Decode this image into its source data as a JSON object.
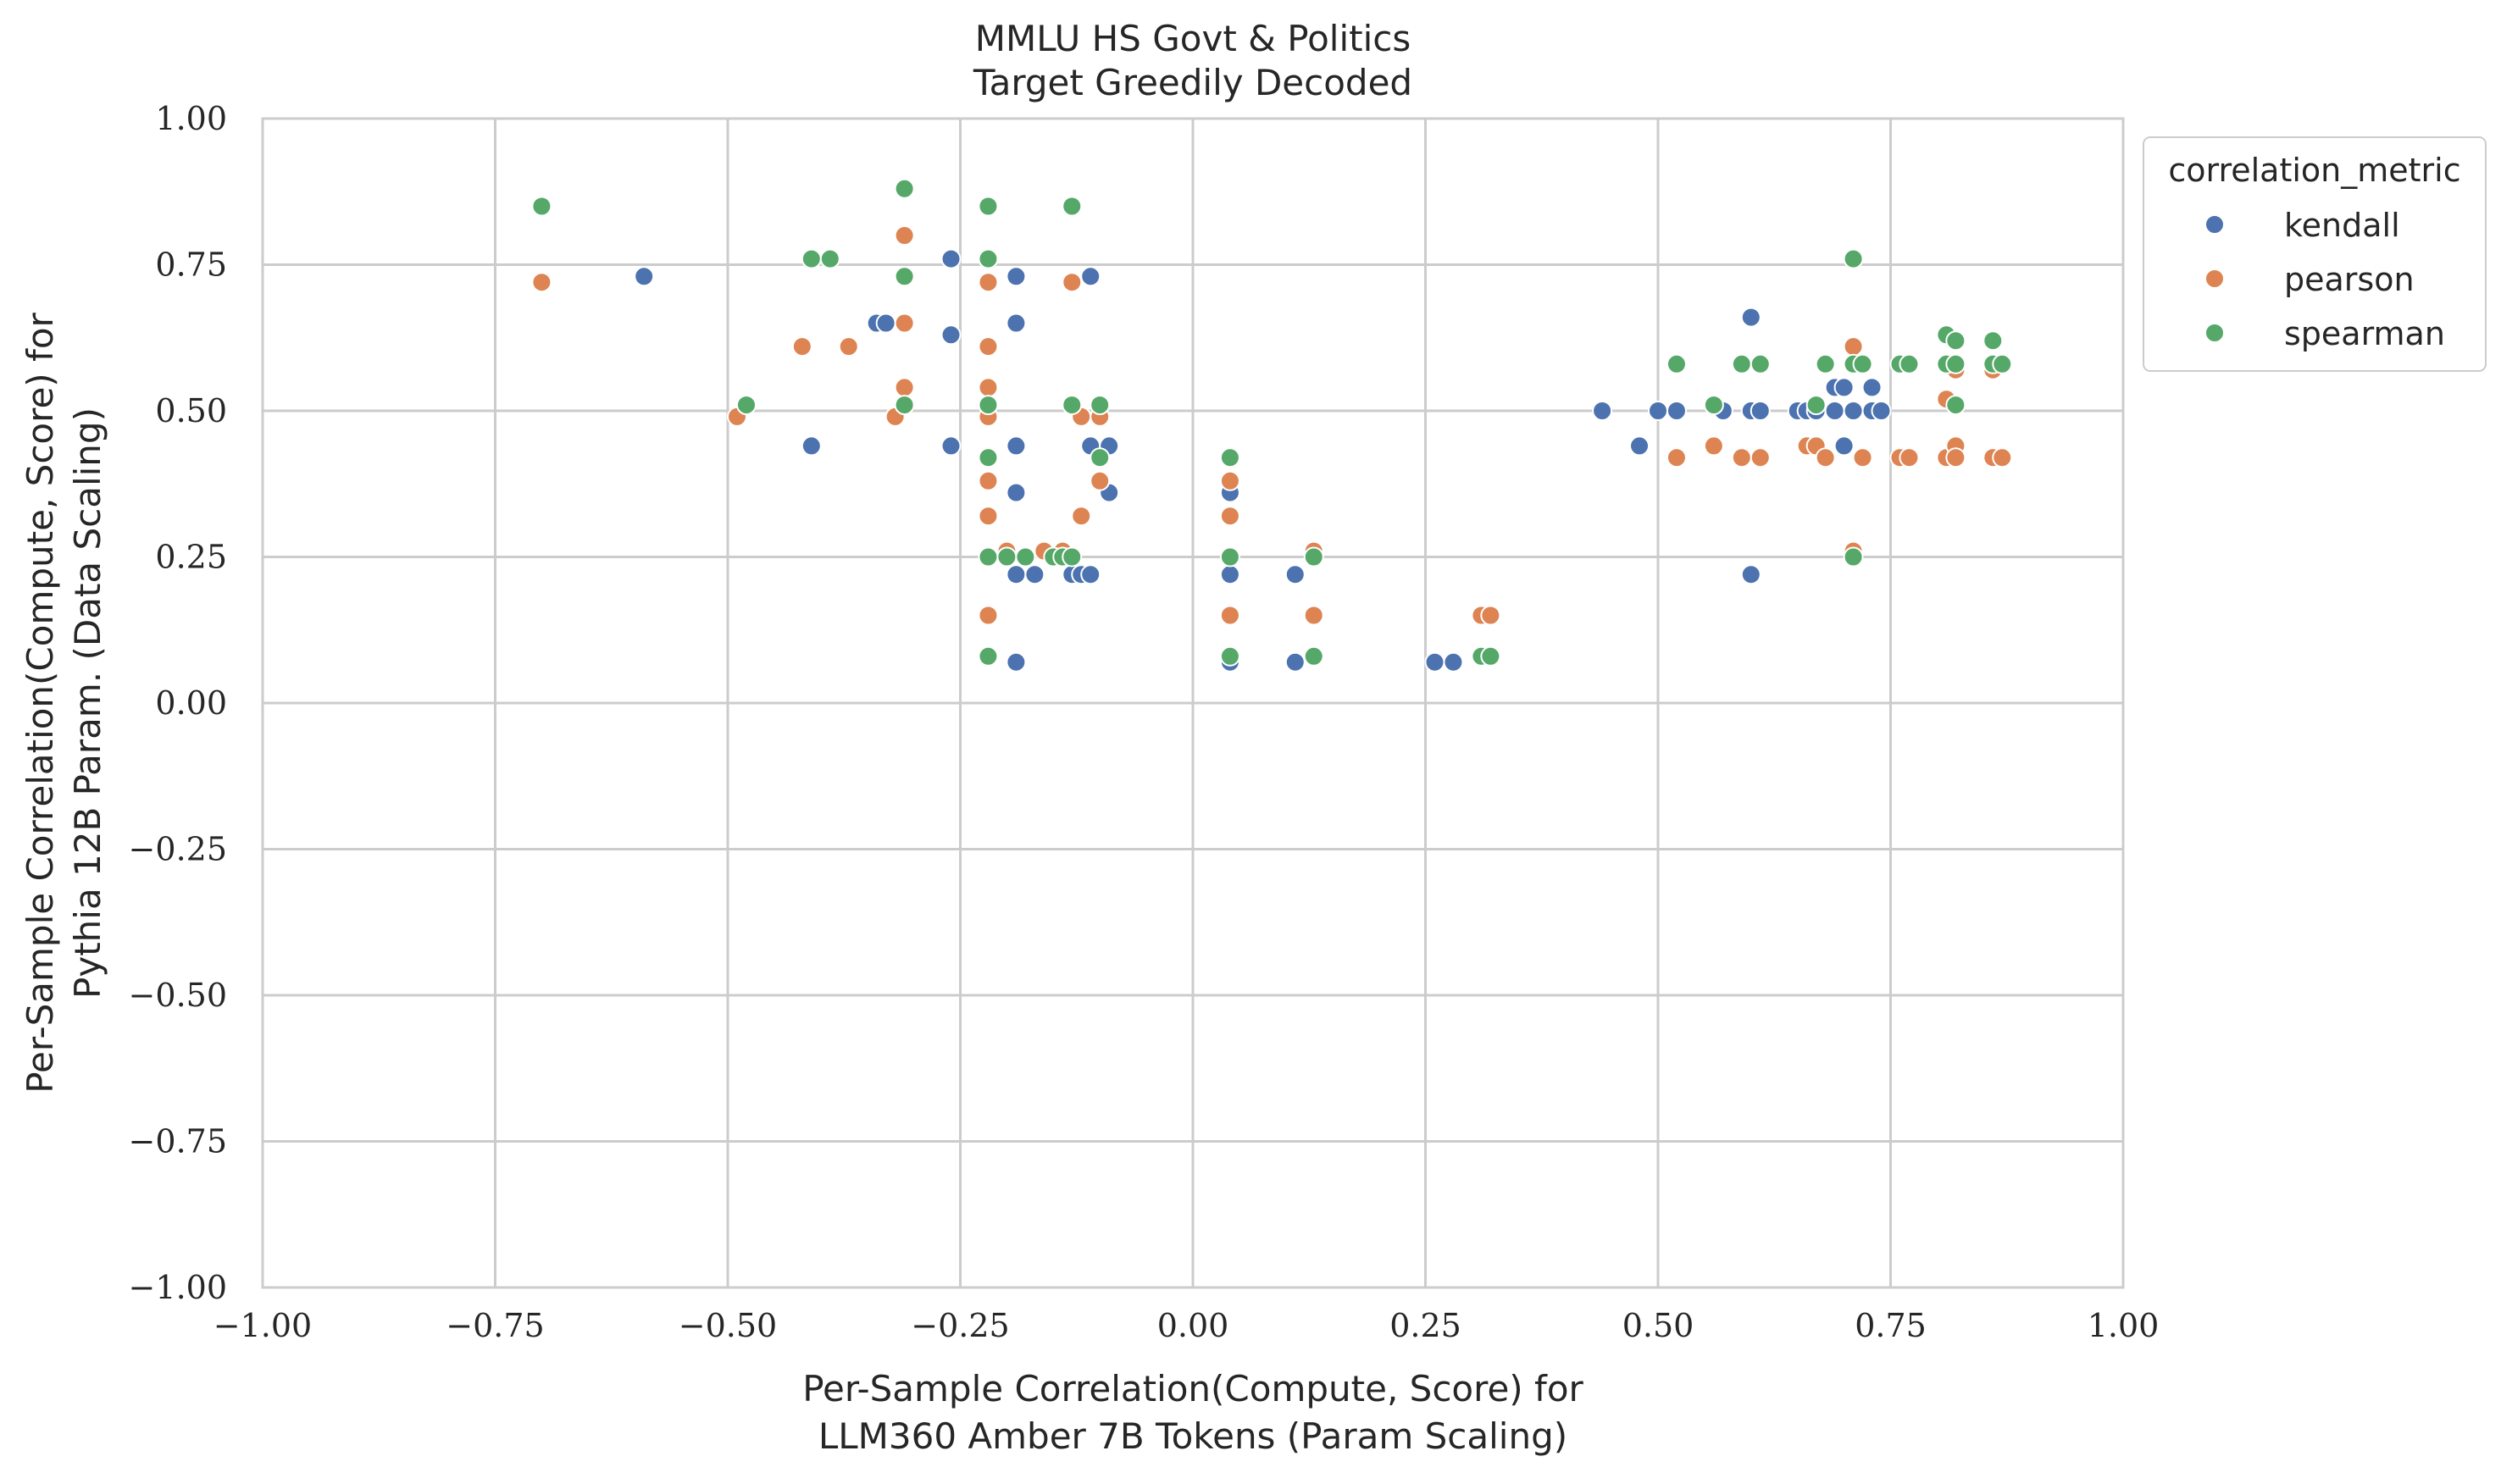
{
  "chart_data": {
    "type": "scatter",
    "title": "MMLU HS Govt & Politics",
    "subtitle": "Target Greedily Decoded",
    "xlabel_line1": "Per-Sample Correlation(Compute, Score) for",
    "xlabel_line2": "LLM360 Amber 7B Tokens (Param Scaling)",
    "ylabel_line1": "Per-Sample Correlation(Compute, Score) for",
    "ylabel_line2": "Pythia 12B Param. (Data Scaling)",
    "xlim": [
      -1.0,
      1.0
    ],
    "ylim": [
      -1.0,
      1.0
    ],
    "xticks": [
      -1.0,
      -0.75,
      -0.5,
      -0.25,
      0.0,
      0.25,
      0.5,
      0.75,
      1.0
    ],
    "yticks": [
      -1.0,
      -0.75,
      -0.5,
      -0.25,
      0.0,
      0.25,
      0.5,
      0.75,
      1.0
    ],
    "xtick_labels": [
      "−1.00",
      "−0.75",
      "−0.50",
      "−0.25",
      "0.00",
      "0.25",
      "0.50",
      "0.75",
      "1.00"
    ],
    "ytick_labels": [
      "−1.00",
      "−0.75",
      "−0.50",
      "−0.25",
      "0.00",
      "0.25",
      "0.50",
      "0.75",
      "1.00"
    ],
    "grid": true,
    "legend_title": "correlation_metric",
    "legend_position": "outside-top-right",
    "series": [
      {
        "name": "kendall",
        "color": "#4c72b0",
        "points": [
          [
            -0.59,
            0.73
          ],
          [
            -0.41,
            0.44
          ],
          [
            -0.34,
            0.65
          ],
          [
            -0.33,
            0.65
          ],
          [
            -0.26,
            0.76
          ],
          [
            -0.26,
            0.63
          ],
          [
            -0.26,
            0.44
          ],
          [
            -0.19,
            0.73
          ],
          [
            -0.19,
            0.65
          ],
          [
            -0.19,
            0.44
          ],
          [
            -0.19,
            0.36
          ],
          [
            -0.19,
            0.22
          ],
          [
            -0.19,
            0.07
          ],
          [
            -0.17,
            0.22
          ],
          [
            -0.13,
            0.22
          ],
          [
            -0.12,
            0.22
          ],
          [
            -0.11,
            0.22
          ],
          [
            -0.11,
            0.73
          ],
          [
            -0.11,
            0.44
          ],
          [
            -0.09,
            0.44
          ],
          [
            -0.09,
            0.36
          ],
          [
            0.04,
            0.36
          ],
          [
            0.04,
            0.22
          ],
          [
            0.04,
            0.07
          ],
          [
            0.11,
            0.22
          ],
          [
            0.11,
            0.07
          ],
          [
            0.26,
            0.07
          ],
          [
            0.28,
            0.07
          ],
          [
            0.44,
            0.5
          ],
          [
            0.48,
            0.44
          ],
          [
            0.5,
            0.5
          ],
          [
            0.52,
            0.5
          ],
          [
            0.56,
            0.44
          ],
          [
            0.57,
            0.5
          ],
          [
            0.6,
            0.66
          ],
          [
            0.6,
            0.5
          ],
          [
            0.6,
            0.22
          ],
          [
            0.61,
            0.5
          ],
          [
            0.65,
            0.5
          ],
          [
            0.66,
            0.5
          ],
          [
            0.67,
            0.5
          ],
          [
            0.69,
            0.54
          ],
          [
            0.69,
            0.5
          ],
          [
            0.7,
            0.54
          ],
          [
            0.7,
            0.44
          ],
          [
            0.71,
            0.5
          ],
          [
            0.73,
            0.54
          ],
          [
            0.73,
            0.5
          ],
          [
            0.74,
            0.5
          ]
        ]
      },
      {
        "name": "pearson",
        "color": "#dd8452",
        "points": [
          [
            -0.7,
            0.72
          ],
          [
            -0.49,
            0.49
          ],
          [
            -0.42,
            0.61
          ],
          [
            -0.37,
            0.61
          ],
          [
            -0.32,
            0.49
          ],
          [
            -0.31,
            0.8
          ],
          [
            -0.31,
            0.65
          ],
          [
            -0.31,
            0.54
          ],
          [
            -0.22,
            0.72
          ],
          [
            -0.22,
            0.61
          ],
          [
            -0.22,
            0.54
          ],
          [
            -0.22,
            0.49
          ],
          [
            -0.22,
            0.38
          ],
          [
            -0.22,
            0.32
          ],
          [
            -0.22,
            0.15
          ],
          [
            -0.2,
            0.26
          ],
          [
            -0.16,
            0.26
          ],
          [
            -0.14,
            0.26
          ],
          [
            -0.13,
            0.72
          ],
          [
            -0.12,
            0.49
          ],
          [
            -0.12,
            0.32
          ],
          [
            -0.1,
            0.49
          ],
          [
            -0.1,
            0.38
          ],
          [
            0.04,
            0.38
          ],
          [
            0.04,
            0.32
          ],
          [
            0.04,
            0.15
          ],
          [
            0.13,
            0.26
          ],
          [
            0.13,
            0.15
          ],
          [
            0.31,
            0.15
          ],
          [
            0.32,
            0.15
          ],
          [
            0.52,
            0.42
          ],
          [
            0.56,
            0.44
          ],
          [
            0.59,
            0.42
          ],
          [
            0.61,
            0.42
          ],
          [
            0.66,
            0.44
          ],
          [
            0.67,
            0.44
          ],
          [
            0.68,
            0.42
          ],
          [
            0.71,
            0.61
          ],
          [
            0.71,
            0.26
          ],
          [
            0.72,
            0.42
          ],
          [
            0.76,
            0.42
          ],
          [
            0.77,
            0.42
          ],
          [
            0.81,
            0.52
          ],
          [
            0.81,
            0.42
          ],
          [
            0.82,
            0.44
          ],
          [
            0.82,
            0.42
          ],
          [
            0.82,
            0.57
          ],
          [
            0.86,
            0.57
          ],
          [
            0.86,
            0.42
          ],
          [
            0.87,
            0.42
          ]
        ]
      },
      {
        "name": "spearman",
        "color": "#55a868",
        "points": [
          [
            -0.7,
            0.85
          ],
          [
            -0.48,
            0.51
          ],
          [
            -0.41,
            0.76
          ],
          [
            -0.39,
            0.76
          ],
          [
            -0.31,
            0.88
          ],
          [
            -0.31,
            0.73
          ],
          [
            -0.31,
            0.51
          ],
          [
            -0.22,
            0.85
          ],
          [
            -0.22,
            0.76
          ],
          [
            -0.22,
            0.51
          ],
          [
            -0.22,
            0.42
          ],
          [
            -0.22,
            0.25
          ],
          [
            -0.22,
            0.08
          ],
          [
            -0.2,
            0.25
          ],
          [
            -0.18,
            0.25
          ],
          [
            -0.15,
            0.25
          ],
          [
            -0.14,
            0.25
          ],
          [
            -0.13,
            0.85
          ],
          [
            -0.13,
            0.51
          ],
          [
            -0.13,
            0.25
          ],
          [
            -0.1,
            0.51
          ],
          [
            -0.1,
            0.42
          ],
          [
            0.04,
            0.42
          ],
          [
            0.04,
            0.25
          ],
          [
            0.04,
            0.08
          ],
          [
            0.13,
            0.25
          ],
          [
            0.13,
            0.08
          ],
          [
            0.31,
            0.08
          ],
          [
            0.32,
            0.08
          ],
          [
            0.52,
            0.58
          ],
          [
            0.56,
            0.51
          ],
          [
            0.59,
            0.58
          ],
          [
            0.61,
            0.58
          ],
          [
            0.67,
            0.51
          ],
          [
            0.68,
            0.58
          ],
          [
            0.71,
            0.76
          ],
          [
            0.71,
            0.58
          ],
          [
            0.71,
            0.25
          ],
          [
            0.72,
            0.58
          ],
          [
            0.76,
            0.58
          ],
          [
            0.77,
            0.58
          ],
          [
            0.81,
            0.63
          ],
          [
            0.81,
            0.58
          ],
          [
            0.82,
            0.62
          ],
          [
            0.82,
            0.58
          ],
          [
            0.82,
            0.51
          ],
          [
            0.86,
            0.62
          ],
          [
            0.86,
            0.58
          ],
          [
            0.87,
            0.58
          ]
        ]
      }
    ]
  }
}
